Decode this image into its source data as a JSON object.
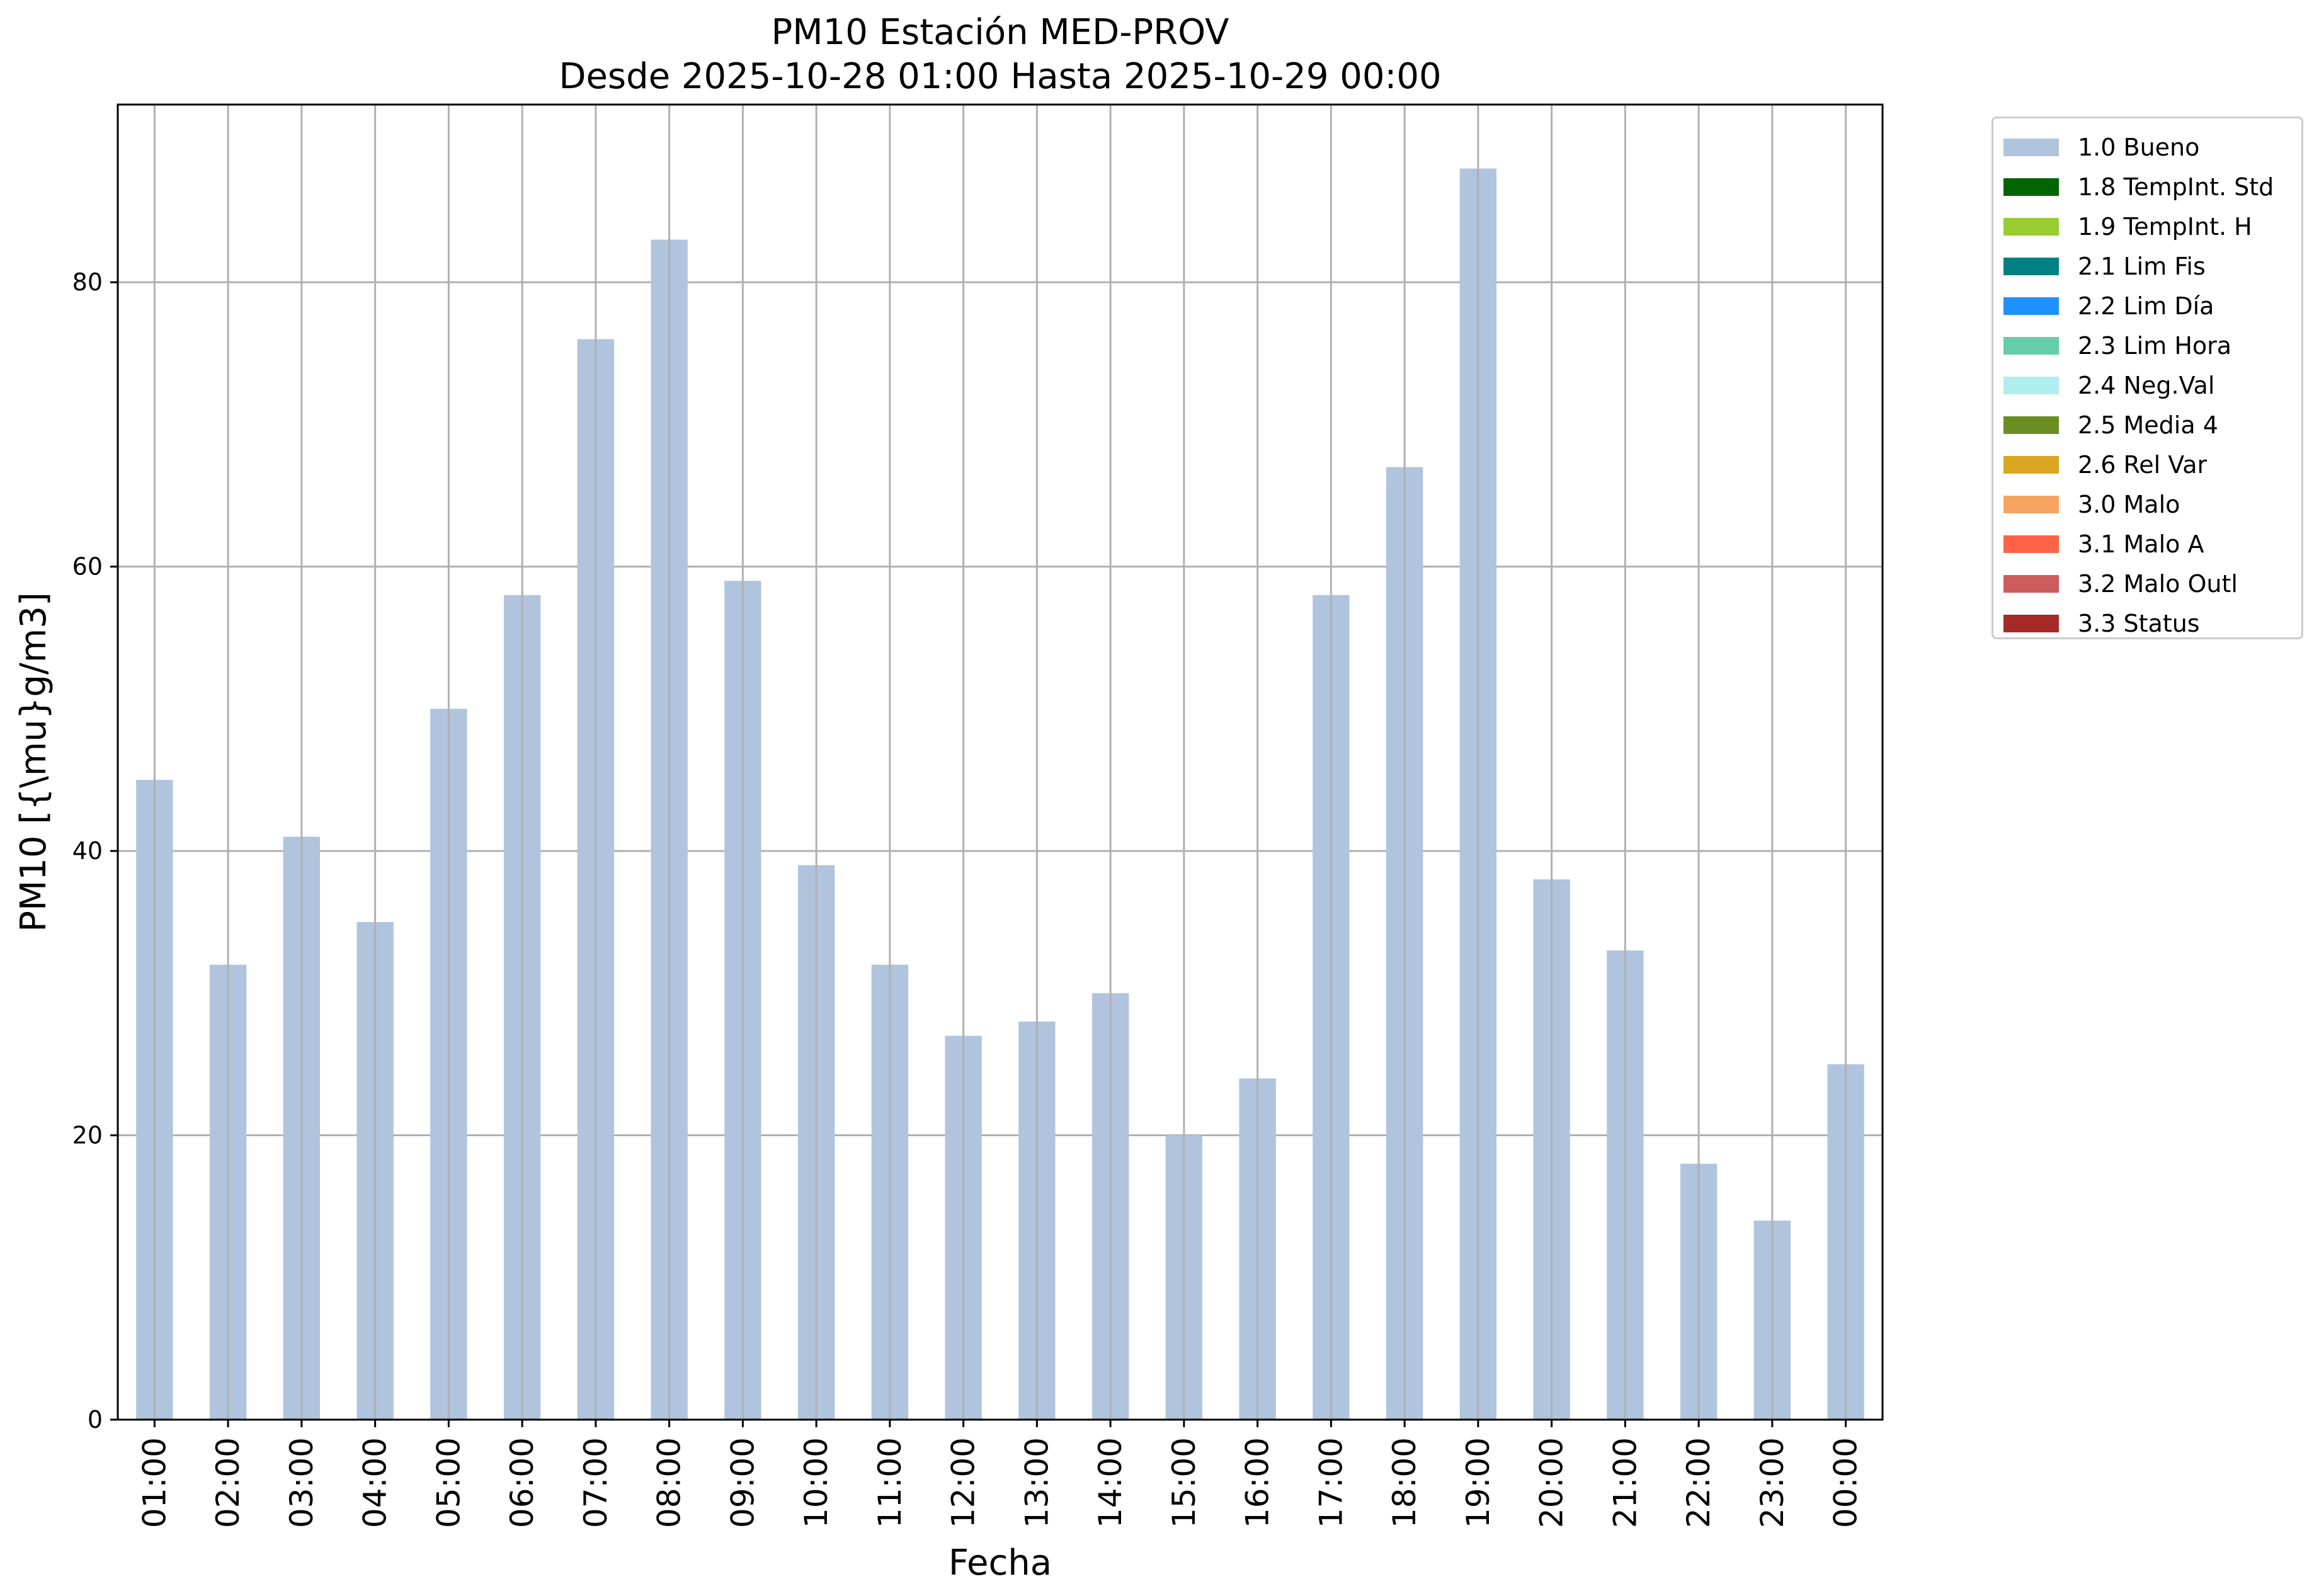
{
  "chart_data": {
    "type": "bar",
    "title": "PM10 Estación MED-PROV",
    "subtitle": "Desde 2025-10-28 01:00 Hasta 2025-10-29 00:00",
    "xlabel": "Fecha",
    "ylabel": "PM10 [{\\mu}g/m3]",
    "ylim": [
      0,
      92.5
    ],
    "yticks": [
      0,
      20,
      40,
      60,
      80
    ],
    "grid": true,
    "legend_position": "outside top-right",
    "categories": [
      "01:00",
      "02:00",
      "03:00",
      "04:00",
      "05:00",
      "06:00",
      "07:00",
      "08:00",
      "09:00",
      "10:00",
      "11:00",
      "12:00",
      "13:00",
      "14:00",
      "15:00",
      "16:00",
      "17:00",
      "18:00",
      "19:00",
      "20:00",
      "21:00",
      "22:00",
      "23:00",
      "00:00"
    ],
    "series": [
      {
        "name": "1.0 Bueno",
        "color": "#b0c4de",
        "values": [
          45,
          32,
          41,
          35,
          50,
          58,
          76,
          83,
          59,
          39,
          32,
          27,
          28,
          30,
          20,
          24,
          58,
          67,
          88,
          38,
          33,
          18,
          14,
          25
        ]
      }
    ],
    "legend": [
      {
        "label": "1.0 Bueno",
        "color": "#b0c4de"
      },
      {
        "label": "1.8 TempInt. Std",
        "color": "#006400"
      },
      {
        "label": "1.9 TempInt. H",
        "color": "#9acd32"
      },
      {
        "label": "2.1 Lim Fis",
        "color": "#008080"
      },
      {
        "label": "2.2 Lim Día",
        "color": "#1e90ff"
      },
      {
        "label": "2.3 Lim Hora",
        "color": "#66cdaa"
      },
      {
        "label": "2.4 Neg.Val",
        "color": "#afeeee"
      },
      {
        "label": "2.5 Media 4",
        "color": "#6b8e23"
      },
      {
        "label": "2.6 Rel Var",
        "color": "#daa520"
      },
      {
        "label": "3.0 Malo",
        "color": "#f4a460"
      },
      {
        "label": "3.1 Malo A",
        "color": "#ff6347"
      },
      {
        "label": "3.2 Malo Outl",
        "color": "#cd5c5c"
      },
      {
        "label": "3.3 Status",
        "color": "#a52a2a"
      }
    ]
  }
}
